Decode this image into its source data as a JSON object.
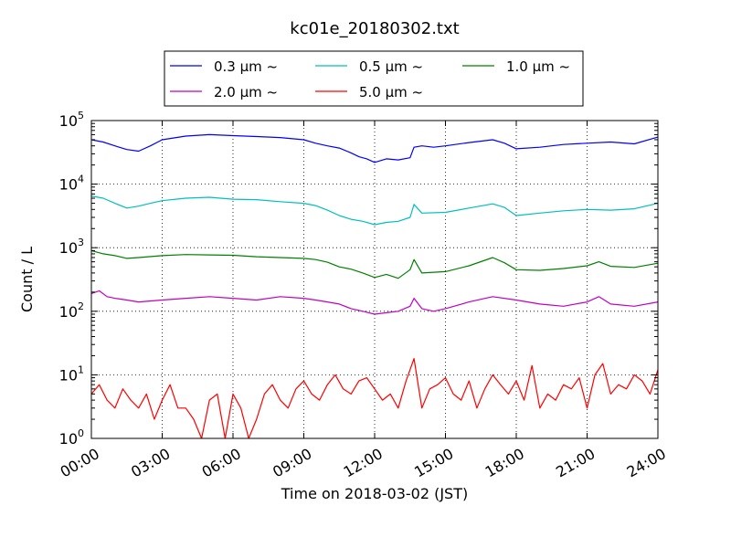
{
  "chart_data": {
    "type": "line",
    "title": "kc01e_20180302.txt",
    "xlabel": "Time on 2018-03-02 (JST)",
    "ylabel": "Count / L",
    "xlim": [
      "00:00",
      "24:00"
    ],
    "ylim": [
      1,
      100000
    ],
    "yscale": "log",
    "x_ticks": [
      "00:00",
      "03:00",
      "06:00",
      "09:00",
      "12:00",
      "15:00",
      "18:00",
      "21:00",
      "24:00"
    ],
    "y_ticks": [
      {
        "base": "10",
        "exp": "0",
        "value": 1
      },
      {
        "base": "10",
        "exp": "1",
        "value": 10
      },
      {
        "base": "10",
        "exp": "2",
        "value": 100
      },
      {
        "base": "10",
        "exp": "3",
        "value": 1000
      },
      {
        "base": "10",
        "exp": "4",
        "value": 10000
      },
      {
        "base": "10",
        "exp": "5",
        "value": 100000
      }
    ],
    "grid": true,
    "legend_position": "top",
    "series": [
      {
        "name": "0.3 μm ~",
        "color": "#0000ff",
        "x": [
          "00:00",
          "00:30",
          "01:00",
          "01:30",
          "02:00",
          "02:30",
          "03:00",
          "04:00",
          "05:00",
          "06:00",
          "07:00",
          "08:00",
          "09:00",
          "09:30",
          "10:00",
          "10:30",
          "11:00",
          "11:20",
          "11:40",
          "12:00",
          "12:30",
          "13:00",
          "13:30",
          "13:40",
          "14:00",
          "14:30",
          "15:00",
          "16:00",
          "17:00",
          "17:30",
          "18:00",
          "19:00",
          "20:00",
          "21:00",
          "22:00",
          "23:00",
          "24:00"
        ],
        "values": [
          50000,
          46000,
          40000,
          35000,
          33000,
          40000,
          50000,
          57000,
          60000,
          58000,
          56000,
          54000,
          50000,
          44000,
          40000,
          37000,
          31000,
          27000,
          25000,
          22000,
          25000,
          24000,
          26000,
          38000,
          40000,
          38000,
          40000,
          45000,
          50000,
          44000,
          36000,
          38000,
          42000,
          44000,
          46000,
          43000,
          55000
        ]
      },
      {
        "name": "0.5 μm ~",
        "color": "#00bfbf",
        "x": [
          "00:00",
          "00:30",
          "01:00",
          "01:30",
          "02:00",
          "02:30",
          "03:00",
          "04:00",
          "05:00",
          "06:00",
          "07:00",
          "08:00",
          "09:00",
          "09:30",
          "10:00",
          "10:30",
          "11:00",
          "11:30",
          "12:00",
          "12:30",
          "13:00",
          "13:30",
          "13:40",
          "14:00",
          "15:00",
          "16:00",
          "17:00",
          "17:30",
          "18:00",
          "19:00",
          "20:00",
          "21:00",
          "22:00",
          "23:00",
          "24:00"
        ],
        "values": [
          6500,
          6000,
          5000,
          4200,
          4500,
          5000,
          5500,
          6000,
          6200,
          5800,
          5700,
          5300,
          5000,
          4600,
          3900,
          3200,
          2800,
          2600,
          2300,
          2500,
          2600,
          3000,
          4800,
          3500,
          3600,
          4200,
          4900,
          4300,
          3200,
          3500,
          3800,
          4000,
          3900,
          4100,
          5000
        ]
      },
      {
        "name": "1.0 μm ~",
        "color": "#008000",
        "x": [
          "00:00",
          "00:30",
          "01:00",
          "01:30",
          "02:00",
          "03:00",
          "04:00",
          "05:00",
          "06:00",
          "07:00",
          "08:00",
          "09:00",
          "09:30",
          "10:00",
          "10:30",
          "11:00",
          "11:30",
          "12:00",
          "12:30",
          "13:00",
          "13:30",
          "13:40",
          "14:00",
          "15:00",
          "16:00",
          "17:00",
          "17:30",
          "18:00",
          "19:00",
          "20:00",
          "21:00",
          "21:30",
          "22:00",
          "23:00",
          "24:00"
        ],
        "values": [
          900,
          800,
          750,
          680,
          700,
          750,
          780,
          770,
          760,
          720,
          700,
          680,
          650,
          590,
          500,
          460,
          400,
          340,
          380,
          330,
          450,
          650,
          400,
          420,
          520,
          700,
          580,
          450,
          440,
          470,
          520,
          600,
          510,
          490,
          570
        ]
      },
      {
        "name": "2.0 μm ~",
        "color": "#bf00bf",
        "x": [
          "00:00",
          "00:20",
          "00:40",
          "01:00",
          "01:30",
          "02:00",
          "03:00",
          "04:00",
          "05:00",
          "06:00",
          "07:00",
          "08:00",
          "09:00",
          "09:30",
          "10:00",
          "10:30",
          "11:00",
          "11:30",
          "12:00",
          "12:30",
          "13:00",
          "13:30",
          "13:40",
          "14:00",
          "14:30",
          "15:00",
          "16:00",
          "17:00",
          "18:00",
          "19:00",
          "20:00",
          "21:00",
          "21:30",
          "22:00",
          "23:00",
          "24:00"
        ],
        "values": [
          190,
          210,
          170,
          160,
          150,
          140,
          150,
          160,
          170,
          160,
          150,
          170,
          160,
          150,
          140,
          130,
          110,
          100,
          90,
          95,
          100,
          120,
          160,
          110,
          100,
          110,
          140,
          170,
          150,
          130,
          120,
          140,
          170,
          130,
          120,
          140
        ]
      },
      {
        "name": "5.0 μm ~",
        "color": "#ff0000",
        "x": [
          "00:00",
          "00:20",
          "00:40",
          "01:00",
          "01:20",
          "01:40",
          "02:00",
          "02:20",
          "02:40",
          "03:00",
          "03:20",
          "03:40",
          "04:00",
          "04:20",
          "04:40",
          "05:00",
          "05:20",
          "05:40",
          "06:00",
          "06:20",
          "06:40",
          "07:00",
          "07:20",
          "07:40",
          "08:00",
          "08:20",
          "08:40",
          "09:00",
          "09:20",
          "09:40",
          "10:00",
          "10:20",
          "10:40",
          "11:00",
          "11:20",
          "11:40",
          "12:00",
          "12:20",
          "12:40",
          "13:00",
          "13:20",
          "13:40",
          "14:00",
          "14:20",
          "14:40",
          "15:00",
          "15:20",
          "15:40",
          "16:00",
          "16:20",
          "16:40",
          "17:00",
          "17:20",
          "17:40",
          "18:00",
          "18:20",
          "18:40",
          "19:00",
          "19:20",
          "19:40",
          "20:00",
          "20:20",
          "20:40",
          "21:00",
          "21:20",
          "21:40",
          "22:00",
          "22:20",
          "22:40",
          "23:00",
          "23:20",
          "23:40",
          "24:00"
        ],
        "values": [
          5,
          7,
          4,
          3,
          6,
          4,
          3,
          5,
          2,
          4,
          7,
          3,
          3,
          2,
          1,
          4,
          5,
          1,
          5,
          3,
          1,
          2,
          5,
          7,
          4,
          3,
          6,
          8,
          5,
          4,
          7,
          10,
          6,
          5,
          8,
          9,
          6,
          4,
          5,
          3,
          8,
          18,
          3,
          6,
          7,
          9,
          5,
          4,
          8,
          3,
          6,
          10,
          7,
          5,
          8,
          4,
          14,
          3,
          5,
          4,
          7,
          6,
          9,
          3,
          10,
          15,
          5,
          7,
          6,
          10,
          8,
          5,
          12
        ]
      }
    ]
  }
}
